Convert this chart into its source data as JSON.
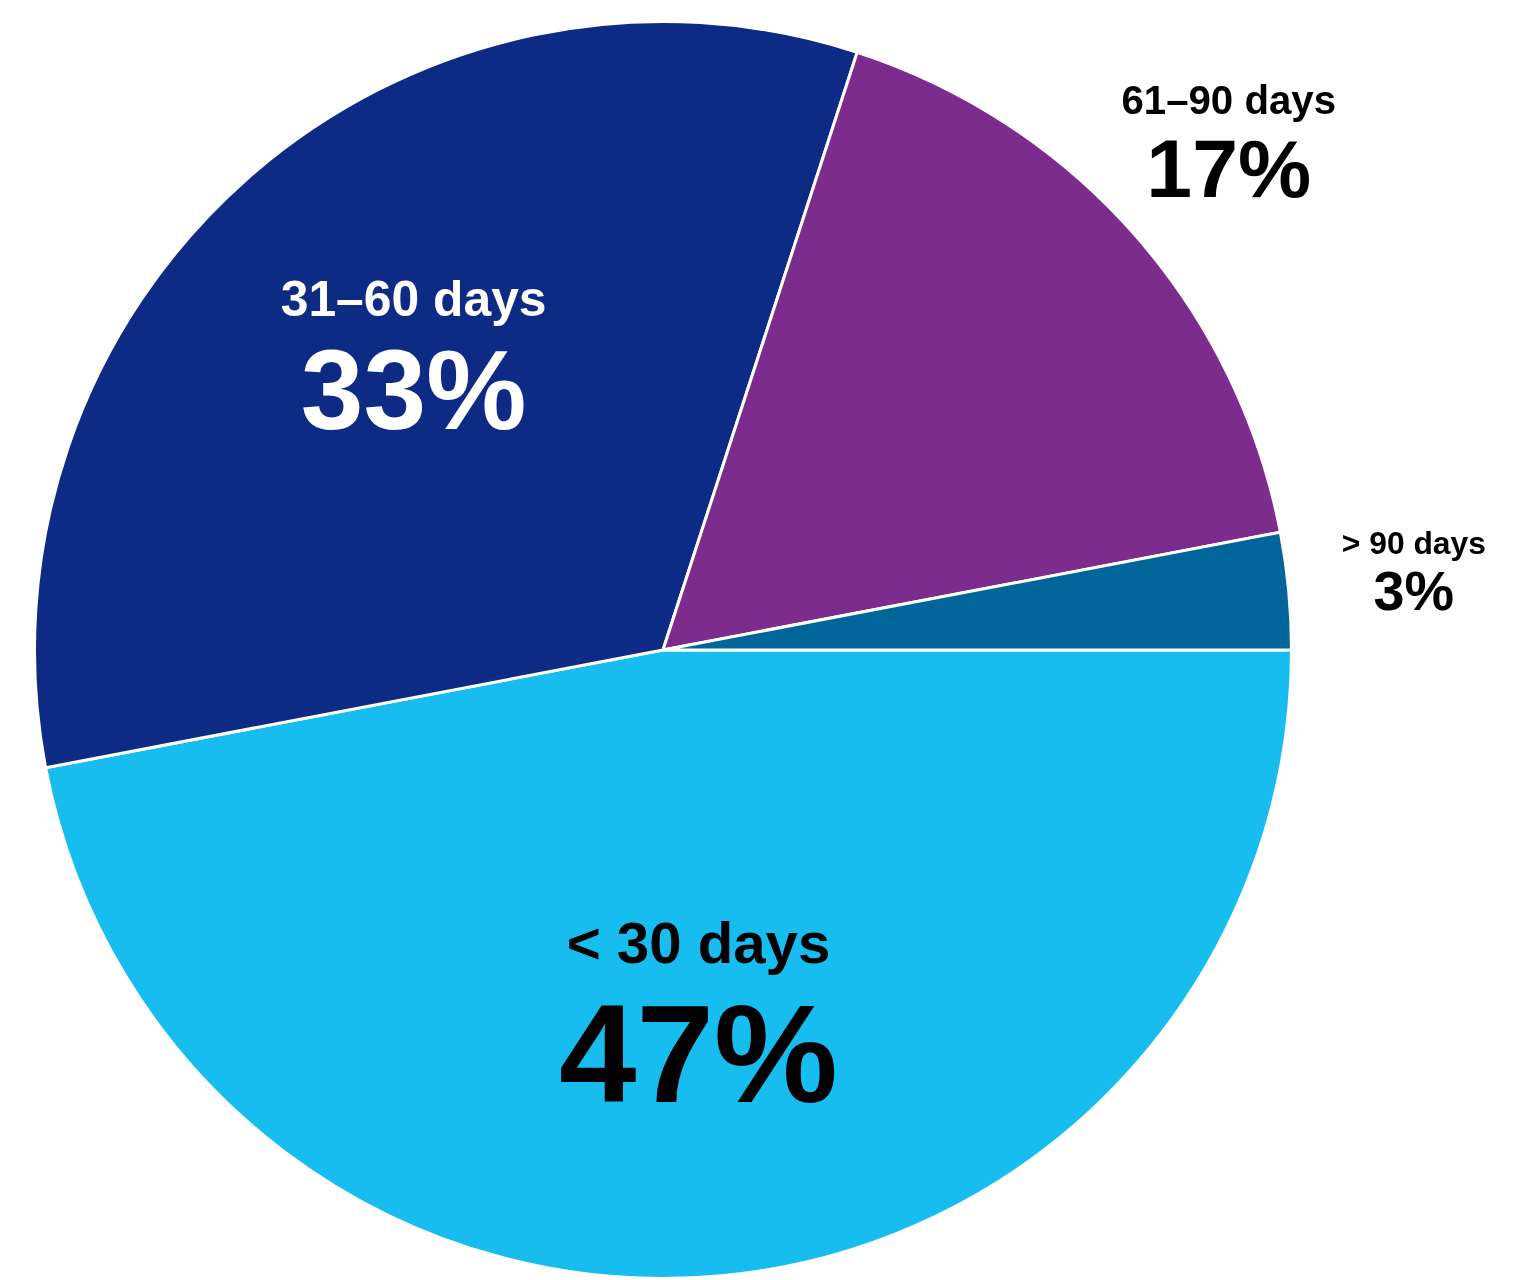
{
  "chart_data": {
    "type": "pie",
    "categories": [
      "< 30 days",
      "31–60 days",
      "61–90 days",
      "> 90 days"
    ],
    "values": [
      47,
      33,
      17,
      3
    ],
    "value_labels": [
      "47%",
      "33%",
      "17%",
      "3%"
    ],
    "colors": [
      "#17bdee",
      "#0d2a85",
      "#7b2c8c",
      "#006699"
    ],
    "legend": false
  }
}
